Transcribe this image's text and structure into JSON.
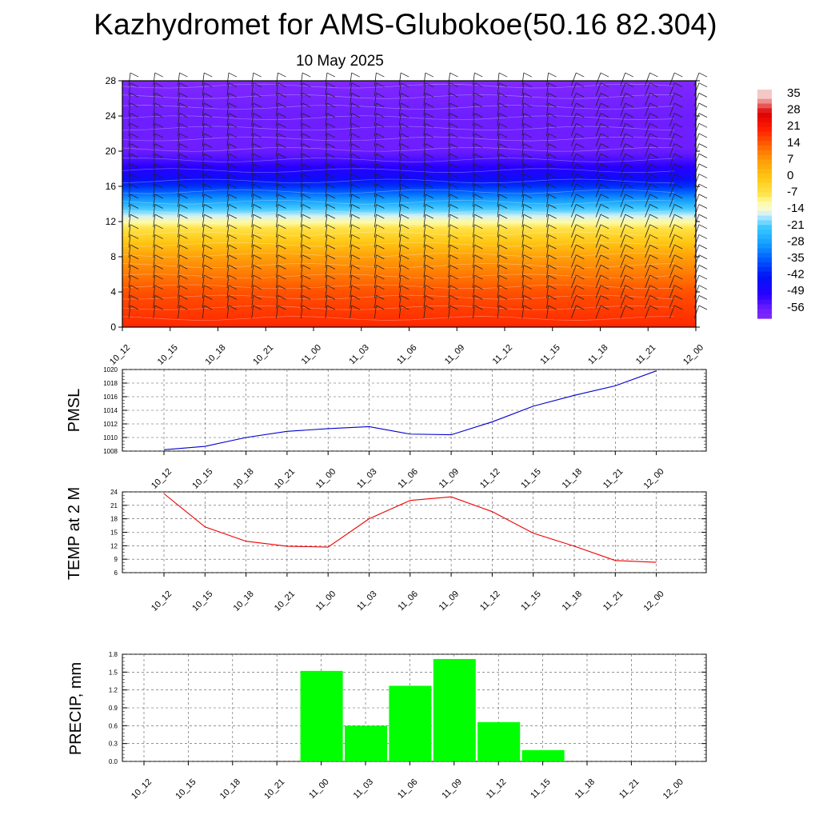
{
  "header": {
    "title": "Kazhydromet for AMS-Glubokoe(50.16 82.304)",
    "date": "10 May 2025"
  },
  "time_labels": [
    "10_12",
    "10_15",
    "10_18",
    "10_21",
    "11_00",
    "11_03",
    "11_06",
    "11_09",
    "11_12",
    "11_15",
    "11_18",
    "11_21",
    "12_00"
  ],
  "chart_data": [
    {
      "type": "heatmap",
      "title": "",
      "xlabel": "",
      "ylabel": "",
      "categories": [
        "10_12",
        "10_15",
        "10_18",
        "10_21",
        "11_00",
        "11_03",
        "11_06",
        "11_09",
        "11_12",
        "11_15",
        "11_18",
        "11_21",
        "12_00"
      ],
      "y_ticks": [
        0,
        4,
        8,
        12,
        16,
        20,
        24,
        28
      ],
      "ylim": [
        0,
        28
      ],
      "colorbar_labels": [
        "35",
        "28",
        "21",
        "14",
        "7",
        "0",
        "-7",
        "-14",
        "-21",
        "-28",
        "-35",
        "-42",
        "-49",
        "-56"
      ],
      "colorbar_range": [
        -60,
        38
      ],
      "grid": false,
      "overlay": "wind barbs and contour lines",
      "profile_temperature": [
        {
          "height": 0,
          "value": 20
        },
        {
          "height": 4,
          "value": 16
        },
        {
          "height": 8,
          "value": 7
        },
        {
          "height": 11.5,
          "value": -7
        },
        {
          "height": 13,
          "value": -18
        },
        {
          "height": 15,
          "value": -32
        },
        {
          "height": 17,
          "value": -46
        },
        {
          "height": 20,
          "value": -56
        },
        {
          "height": 24,
          "value": -56
        },
        {
          "height": 28,
          "value": -60
        }
      ]
    },
    {
      "type": "line",
      "ylabel": "PMSL",
      "categories": [
        "10_12",
        "10_15",
        "10_18",
        "10_21",
        "11_00",
        "11_03",
        "11_06",
        "11_09",
        "11_12",
        "11_15",
        "11_18",
        "11_21",
        "12_00"
      ],
      "series": [
        {
          "color": "#0000cc",
          "values": [
            1008.2,
            1008.7,
            1010.0,
            1010.9,
            1011.3,
            1011.6,
            1010.5,
            1010.4,
            1012.3,
            1014.6,
            1016.2,
            1017.6,
            1019.8
          ]
        }
      ],
      "ylim": [
        1008,
        1020
      ],
      "y_ticks": [
        1008,
        1010,
        1012,
        1014,
        1016,
        1018,
        1020
      ],
      "grid": true
    },
    {
      "type": "line",
      "ylabel": "TEMP at 2 M",
      "categories": [
        "10_12",
        "10_15",
        "10_18",
        "10_21",
        "11_00",
        "11_03",
        "11_06",
        "11_09",
        "11_12",
        "11_15",
        "11_18",
        "11_21",
        "12_00"
      ],
      "series": [
        {
          "color": "#ee0000",
          "values": [
            23.6,
            16.2,
            13.0,
            11.9,
            11.7,
            18.0,
            22.1,
            22.9,
            19.6,
            14.8,
            11.9,
            8.7,
            8.3
          ]
        }
      ],
      "ylim": [
        6,
        24
      ],
      "y_ticks": [
        6,
        9,
        12,
        15,
        18,
        21,
        24
      ],
      "grid": true
    },
    {
      "type": "bar",
      "ylabel": "PRECIP, mm",
      "categories": [
        "10_12",
        "10_15",
        "10_18",
        "10_21",
        "11_00",
        "11_03",
        "11_06",
        "11_09",
        "11_12",
        "11_15",
        "11_18",
        "11_21",
        "12_00"
      ],
      "values": [
        0,
        0,
        0,
        0,
        1.52,
        0.6,
        1.27,
        1.72,
        0.66,
        0.19,
        0,
        0,
        0
      ],
      "color": "#00ff00",
      "ylim": [
        0,
        1.8
      ],
      "y_ticks": [
        "0.0",
        "0.3",
        "0.6",
        "0.9",
        "1.2",
        "1.5",
        "1.8"
      ],
      "grid": true
    }
  ]
}
